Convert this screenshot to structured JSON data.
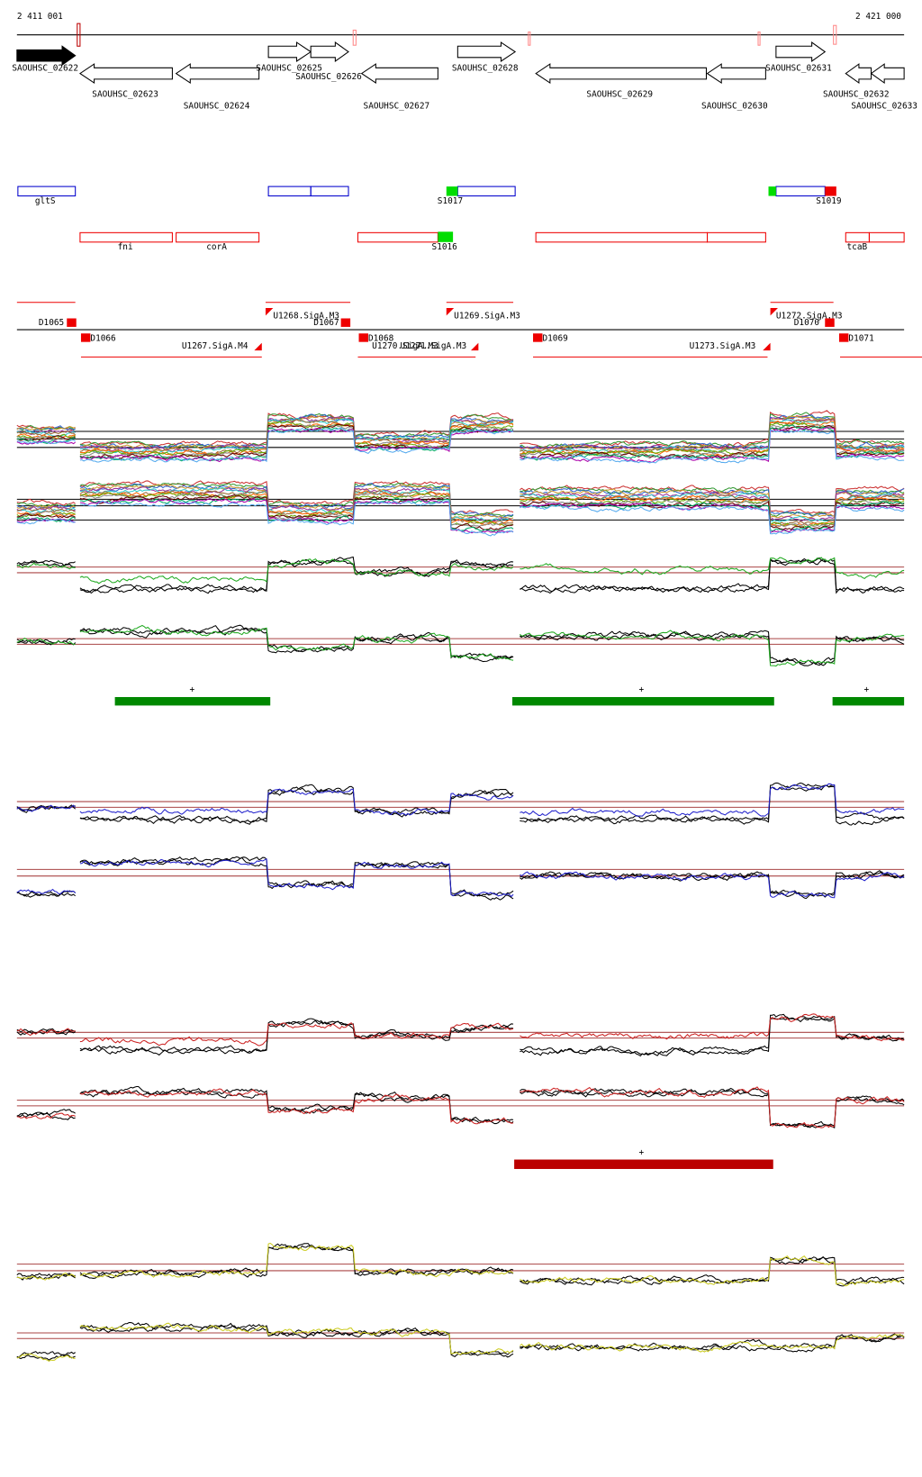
{
  "header": {
    "start": "2 411 001",
    "end": "2 421 000"
  },
  "genes": [
    "SAOUHSC_02622",
    "SAOUHSC_02623",
    "SAOUHSC_02624",
    "SAOUHSC_02625",
    "SAOUHSC_02626",
    "SAOUHSC_02627",
    "SAOUHSC_02628",
    "SAOUHSC_02629",
    "SAOUHSC_02630",
    "SAOUHSC_02631",
    "SAOUHSC_02632",
    "SAOUHSC_02633"
  ],
  "features": [
    "gltS",
    "S1017",
    "S1019",
    "fni",
    "corA",
    "S1016",
    "tcaB"
  ],
  "segments": [
    "D1065",
    "D1066",
    "U1267.SigA.M4",
    "U1268.SigA.M3",
    "D1067",
    "D1068",
    "U1270.SigA.M3",
    "U1271.SigA.M3",
    "U1269.SigA.M3",
    "D1069",
    "U1273.SigA.M3",
    "U1272.SigA.M3",
    "D1070",
    "D1071"
  ],
  "markers": [
    "+",
    "+",
    "+",
    "+"
  ]
}
